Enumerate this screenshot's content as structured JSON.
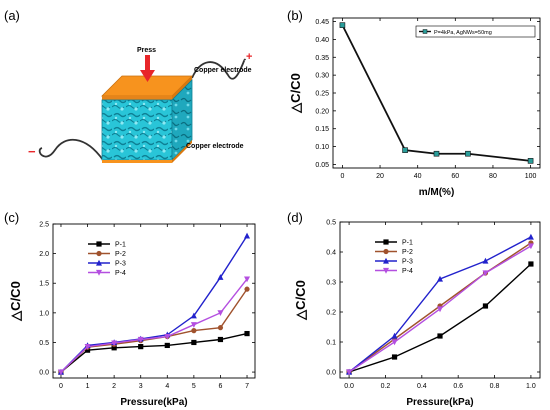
{
  "panels": {
    "a": {
      "label": "(a)",
      "press_label": "Press",
      "top_electrode_label": "Copper electrode",
      "bottom_electrode_label": "Copper electrode",
      "plus_sign": "+",
      "minus_sign": "−",
      "colors": {
        "electrode": "#f7931e",
        "sponge": "#29c5d8",
        "arrow": "#e8262a",
        "wire": "#333333",
        "plus": "#e8262a",
        "minus": "#e8262a"
      }
    },
    "b": {
      "label": "(b)"
    },
    "c": {
      "label": "(c)"
    },
    "d": {
      "label": "(d)"
    }
  },
  "chart_data": [
    {
      "id": "b",
      "type": "line",
      "xlabel": "m/M(%)",
      "ylabel": "△C/C0",
      "xlim": [
        -5,
        105
      ],
      "ylim": [
        0.04,
        0.46
      ],
      "xticks": [
        0,
        20,
        40,
        60,
        80,
        100
      ],
      "yticks": [
        0.05,
        0.1,
        0.15,
        0.2,
        0.25,
        0.3,
        0.35,
        0.4,
        0.45
      ],
      "ytick_labels": [
        "0.05",
        "0.10",
        "0.15",
        "0.20",
        "0.25",
        "0.30",
        "0.35",
        "0.40",
        "0.45"
      ],
      "legend_position": "top-right",
      "series": [
        {
          "name": "P=4kPa, AgNWs=50mg",
          "color": "#111111",
          "marker_color": "#2a9d9a",
          "x": [
            0,
            33.3,
            50,
            66.7,
            100
          ],
          "y": [
            0.44,
            0.09,
            0.08,
            0.08,
            0.06
          ]
        }
      ]
    },
    {
      "id": "c",
      "type": "line",
      "xlabel": "Pressure(kPa)",
      "ylabel": "△C/C0",
      "xlim": [
        -0.3,
        7.3
      ],
      "ylim": [
        -0.1,
        2.5
      ],
      "xticks": [
        0,
        1,
        2,
        3,
        4,
        5,
        6,
        7
      ],
      "yticks": [
        0.0,
        0.5,
        1.0,
        1.5,
        2.0,
        2.5
      ],
      "ytick_labels": [
        "0.0",
        "0.5",
        "1.0",
        "1.5",
        "2.0",
        "2.5"
      ],
      "legend_position": "top-left",
      "x": [
        0,
        1,
        2,
        3,
        4,
        5,
        6,
        7
      ],
      "series": [
        {
          "name": "P-1",
          "color": "#000000",
          "marker": "square",
          "values": [
            0.0,
            0.37,
            0.41,
            0.43,
            0.45,
            0.5,
            0.55,
            0.65
          ]
        },
        {
          "name": "P-2",
          "color": "#a0522d",
          "marker": "circle",
          "values": [
            0.0,
            0.42,
            0.47,
            0.53,
            0.6,
            0.7,
            0.75,
            1.4
          ]
        },
        {
          "name": "P-3",
          "color": "#2222cc",
          "marker": "triangle-up",
          "values": [
            0.0,
            0.45,
            0.5,
            0.56,
            0.63,
            0.95,
            1.6,
            2.3
          ]
        },
        {
          "name": "P-4",
          "color": "#b44fe0",
          "marker": "triangle-down",
          "values": [
            0.0,
            0.43,
            0.49,
            0.55,
            0.6,
            0.8,
            1.0,
            1.57
          ]
        }
      ]
    },
    {
      "id": "d",
      "type": "line",
      "xlabel": "Pressure(kPa)",
      "ylabel": "△C/C0",
      "xlim": [
        -0.05,
        1.05
      ],
      "ylim": [
        -0.02,
        0.5
      ],
      "xticks": [
        0.0,
        0.2,
        0.4,
        0.6,
        0.8,
        1.0
      ],
      "xtick_labels": [
        "0.0",
        "0.2",
        "0.4",
        "0.6",
        "0.8",
        "1.0"
      ],
      "yticks": [
        0.0,
        0.1,
        0.2,
        0.3,
        0.4,
        0.5
      ],
      "ytick_labels": [
        "0.0",
        "0.1",
        "0.2",
        "0.3",
        "0.4",
        "0.5"
      ],
      "legend_position": "top-left",
      "x": [
        0,
        0.25,
        0.5,
        0.75,
        1.0
      ],
      "series": [
        {
          "name": "P-1",
          "color": "#000000",
          "marker": "square",
          "values": [
            0.0,
            0.05,
            0.12,
            0.22,
            0.36
          ]
        },
        {
          "name": "P-2",
          "color": "#a0522d",
          "marker": "circle",
          "values": [
            0.0,
            0.11,
            0.22,
            0.33,
            0.43
          ]
        },
        {
          "name": "P-3",
          "color": "#2222cc",
          "marker": "triangle-up",
          "values": [
            0.0,
            0.12,
            0.31,
            0.37,
            0.45
          ]
        },
        {
          "name": "P-4",
          "color": "#b44fe0",
          "marker": "triangle-down",
          "values": [
            0.0,
            0.1,
            0.21,
            0.33,
            0.42
          ]
        }
      ]
    }
  ]
}
